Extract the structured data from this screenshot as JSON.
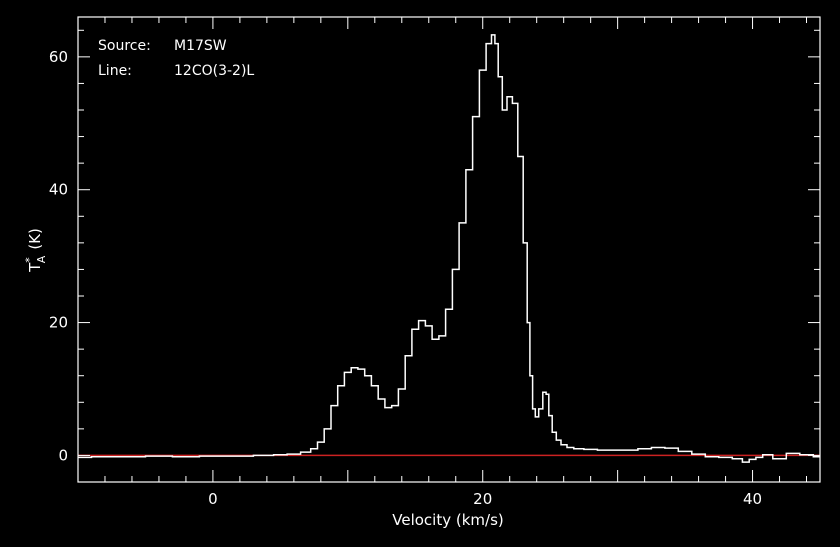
{
  "chart_data": {
    "type": "line",
    "xlabel": "Velocity (km/s)",
    "ylabel": {
      "main": "T",
      "sub": "A",
      "sup": "*",
      "unit": "(K)"
    },
    "xlim": [
      -10,
      45
    ],
    "ylim": [
      -4,
      66
    ],
    "xticks": [
      0,
      20,
      40
    ],
    "yticks": [
      0,
      20,
      40,
      60
    ],
    "grid": false,
    "annotations": {
      "source_label": "Source:",
      "source_value": "M17SW",
      "line_label": "Line:",
      "line_value": "12CO(3-2)L"
    },
    "baseline": {
      "y": 0,
      "color": "#cc2222"
    },
    "colors": {
      "spectrum": "#ffffff",
      "baseline": "#cc2222",
      "frame": "#ffffff",
      "background": "#000000"
    },
    "series": [
      {
        "x": [
          -10,
          -8,
          -6,
          -4,
          -2,
          0,
          2,
          4,
          5,
          6,
          7,
          7.5,
          8,
          8.5,
          9,
          9.5,
          10,
          10.5,
          11,
          11.5,
          12,
          12.5,
          13,
          13.5,
          14,
          14.5,
          15,
          15.5,
          16,
          16.5,
          17,
          17.5,
          18,
          18.5,
          19,
          19.5,
          20,
          20.5,
          20.8,
          21,
          21.3,
          21.6,
          22,
          22.4,
          22.8,
          23.2,
          23.4,
          23.6,
          23.8,
          24,
          24.3,
          24.6,
          24.8,
          25,
          25.3,
          25.6,
          26,
          26.5,
          27,
          28,
          29,
          30,
          31,
          32,
          33,
          34,
          35,
          36,
          37,
          38,
          39,
          39.5,
          40,
          40.5,
          41,
          42,
          43,
          44,
          45
        ],
        "y": [
          -0.3,
          -0.2,
          -0.2,
          -0.1,
          -0.2,
          -0.1,
          -0.1,
          0,
          0.1,
          0.2,
          0.5,
          1,
          2,
          4,
          7.5,
          10.5,
          12.5,
          13.2,
          13,
          12,
          10.5,
          8.5,
          7.2,
          7.5,
          10,
          15,
          19,
          20.3,
          19.5,
          17.5,
          18,
          22,
          28,
          35,
          43,
          51,
          58,
          62,
          63.3,
          62,
          57,
          52,
          54,
          53,
          45,
          32,
          20,
          12,
          7,
          5.8,
          7,
          9.5,
          9.2,
          6,
          3.5,
          2.3,
          1.6,
          1.2,
          1,
          0.9,
          0.8,
          0.8,
          0.8,
          1,
          1.2,
          1.1,
          0.6,
          0.2,
          -0.2,
          -0.3,
          -0.5,
          -1,
          -0.6,
          -0.3,
          0.1,
          -0.5,
          0.3,
          0.1,
          -0.2
        ]
      }
    ]
  }
}
